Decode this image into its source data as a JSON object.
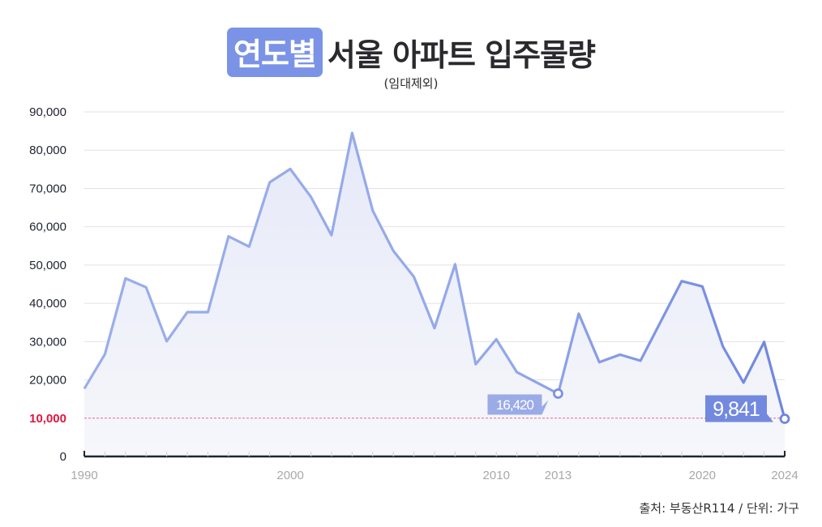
{
  "title": {
    "badge": "연도별",
    "main": "서울 아파트 입주물량",
    "subtitle": "(임대제외)"
  },
  "source": "출처: 부동산R114 / 단위: 가구",
  "colors": {
    "badge": "#7a93e6",
    "line_light": "#9aaee8",
    "line_dark": "#6f86df",
    "area": "#e9ecf8",
    "grid": "#e2e2e6",
    "threshold": "#e56a8c",
    "threshold_label": "#e0163e",
    "axis": "#1d2633",
    "label_2013_bg": "#9aabe8",
    "label_2024_bg": "#7389e0"
  },
  "chart_data": {
    "type": "area",
    "title": "연도별 서울 아파트 입주물량 (임대제외)",
    "xlabel": "",
    "ylabel": "가구",
    "ylim": [
      0,
      90000
    ],
    "xlim": [
      1990,
      2024
    ],
    "grid": true,
    "y_ticks": [
      "0",
      "10,000",
      "20,000",
      "30,000",
      "40,000",
      "50,000",
      "60,000",
      "70,000",
      "80,000",
      "90,000"
    ],
    "y_tick_values": [
      0,
      10000,
      20000,
      30000,
      40000,
      50000,
      60000,
      70000,
      80000,
      90000
    ],
    "x_tick_labels": [
      "1990",
      "2000",
      "2010",
      "2013",
      "2020",
      "2024"
    ],
    "threshold_line": {
      "value": 10000,
      "label": "10,000",
      "style": "dashed-red"
    },
    "x": [
      1990,
      1991,
      1992,
      1993,
      1994,
      1995,
      1996,
      1997,
      1998,
      1999,
      2000,
      2001,
      2002,
      2003,
      2004,
      2005,
      2006,
      2007,
      2008,
      2009,
      2010,
      2011,
      2012,
      2013,
      2014,
      2015,
      2016,
      2017,
      2018,
      2019,
      2020,
      2021,
      2022,
      2023,
      2024
    ],
    "series": [
      {
        "name": "서울 아파트 입주물량",
        "values": [
          17700,
          26700,
          46500,
          44200,
          30100,
          37700,
          37700,
          57500,
          54800,
          71600,
          75100,
          67800,
          57800,
          84500,
          64200,
          53700,
          46900,
          33500,
          50200,
          24100,
          30600,
          22000,
          19200,
          16420,
          37300,
          24600,
          26600,
          25000,
          35400,
          45800,
          44400,
          28700,
          19300,
          29900,
          9841
        ]
      }
    ],
    "annotations": [
      {
        "x": 2013,
        "value": 16420,
        "label": "16,420"
      },
      {
        "x": 2024,
        "value": 9841,
        "label": "9,841"
      }
    ]
  }
}
